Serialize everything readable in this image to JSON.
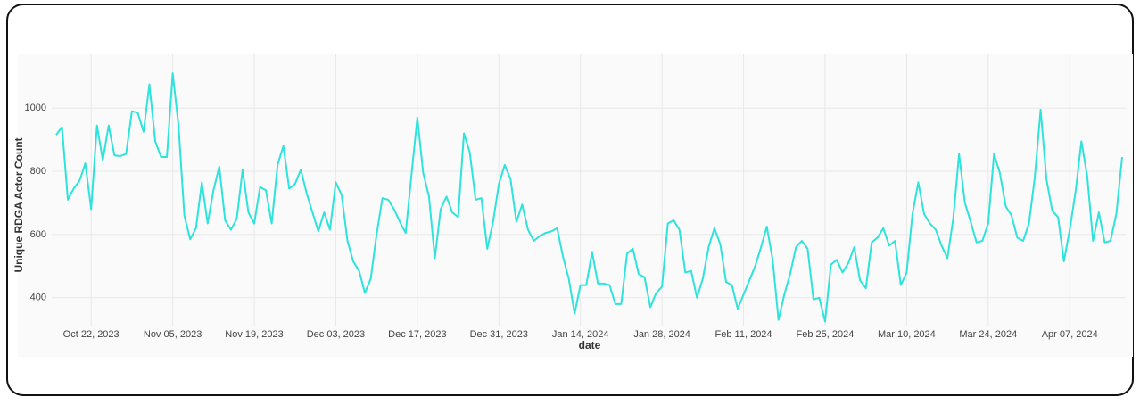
{
  "chart_data": {
    "type": "line",
    "x_label": "date",
    "y_label": "Unique RDGA Actor Count",
    "x": [
      "2023-10-16",
      "2023-10-17",
      "2023-10-18",
      "2023-10-19",
      "2023-10-20",
      "2023-10-21",
      "2023-10-22",
      "2023-10-23",
      "2023-10-24",
      "2023-10-25",
      "2023-10-26",
      "2023-10-27",
      "2023-10-28",
      "2023-10-29",
      "2023-10-30",
      "2023-10-31",
      "2023-11-01",
      "2023-11-02",
      "2023-11-03",
      "2023-11-04",
      "2023-11-05",
      "2023-11-06",
      "2023-11-07",
      "2023-11-08",
      "2023-11-09",
      "2023-11-10",
      "2023-11-11",
      "2023-11-12",
      "2023-11-13",
      "2023-11-14",
      "2023-11-15",
      "2023-11-16",
      "2023-11-17",
      "2023-11-18",
      "2023-11-19",
      "2023-11-20",
      "2023-11-21",
      "2023-11-22",
      "2023-11-23",
      "2023-11-24",
      "2023-11-25",
      "2023-11-26",
      "2023-11-27",
      "2023-11-28",
      "2023-11-29",
      "2023-11-30",
      "2023-12-01",
      "2023-12-02",
      "2023-12-03",
      "2023-12-04",
      "2023-12-05",
      "2023-12-06",
      "2023-12-07",
      "2023-12-08",
      "2023-12-09",
      "2023-12-10",
      "2023-12-11",
      "2023-12-12",
      "2023-12-13",
      "2023-12-14",
      "2023-12-15",
      "2023-12-16",
      "2023-12-17",
      "2023-12-18",
      "2023-12-19",
      "2023-12-20",
      "2023-12-21",
      "2023-12-22",
      "2023-12-23",
      "2023-12-24",
      "2023-12-25",
      "2023-12-26",
      "2023-12-27",
      "2023-12-28",
      "2023-12-29",
      "2023-12-30",
      "2023-12-31",
      "2024-01-01",
      "2024-01-02",
      "2024-01-03",
      "2024-01-04",
      "2024-01-05",
      "2024-01-06",
      "2024-01-07",
      "2024-01-08",
      "2024-01-09",
      "2024-01-10",
      "2024-01-11",
      "2024-01-12",
      "2024-01-13",
      "2024-01-14",
      "2024-01-15",
      "2024-01-16",
      "2024-01-17",
      "2024-01-18",
      "2024-01-19",
      "2024-01-20",
      "2024-01-21",
      "2024-01-22",
      "2024-01-23",
      "2024-01-24",
      "2024-01-25",
      "2024-01-26",
      "2024-01-27",
      "2024-01-28",
      "2024-01-29",
      "2024-01-30",
      "2024-01-31",
      "2024-02-01",
      "2024-02-02",
      "2024-02-03",
      "2024-02-04",
      "2024-02-05",
      "2024-02-06",
      "2024-02-07",
      "2024-02-08",
      "2024-02-09",
      "2024-02-10",
      "2024-02-11",
      "2024-02-12",
      "2024-02-13",
      "2024-02-14",
      "2024-02-15",
      "2024-02-16",
      "2024-02-17",
      "2024-02-18",
      "2024-02-19",
      "2024-02-20",
      "2024-02-21",
      "2024-02-22",
      "2024-02-23",
      "2024-02-24",
      "2024-02-25",
      "2024-02-26",
      "2024-02-27",
      "2024-02-28",
      "2024-02-29",
      "2024-03-01",
      "2024-03-02",
      "2024-03-03",
      "2024-03-04",
      "2024-03-05",
      "2024-03-06",
      "2024-03-07",
      "2024-03-08",
      "2024-03-09",
      "2024-03-10",
      "2024-03-11",
      "2024-03-12",
      "2024-03-13",
      "2024-03-14",
      "2024-03-15",
      "2024-03-16",
      "2024-03-17",
      "2024-03-18",
      "2024-03-19",
      "2024-03-20",
      "2024-03-21",
      "2024-03-22",
      "2024-03-23",
      "2024-03-24",
      "2024-03-25",
      "2024-03-26",
      "2024-03-27",
      "2024-03-28",
      "2024-03-29",
      "2024-03-30",
      "2024-03-31",
      "2024-04-01",
      "2024-04-02",
      "2024-04-03",
      "2024-04-04",
      "2024-04-05",
      "2024-04-06",
      "2024-04-07",
      "2024-04-08",
      "2024-04-09",
      "2024-04-10",
      "2024-04-11",
      "2024-04-12",
      "2024-04-13",
      "2024-04-14",
      "2024-04-15",
      "2024-04-16"
    ],
    "series": [
      {
        "color": "#2ee3dc",
        "values": [
          915,
          940,
          710,
          745,
          770,
          825,
          680,
          945,
          835,
          945,
          850,
          848,
          855,
          990,
          985,
          925,
          1075,
          895,
          845,
          845,
          1110,
          945,
          660,
          585,
          620,
          765,
          635,
          740,
          815,
          645,
          615,
          650,
          805,
          670,
          635,
          750,
          740,
          635,
          820,
          880,
          745,
          760,
          805,
          730,
          670,
          610,
          670,
          615,
          765,
          725,
          580,
          515,
          485,
          415,
          460,
          600,
          715,
          710,
          680,
          640,
          605,
          790,
          970,
          795,
          720,
          525,
          680,
          720,
          670,
          655,
          920,
          860,
          710,
          715,
          555,
          640,
          760,
          820,
          775,
          640,
          695,
          615,
          580,
          595,
          605,
          610,
          620,
          530,
          460,
          350,
          440,
          440,
          545,
          445,
          445,
          440,
          380,
          380,
          540,
          555,
          475,
          465,
          370,
          415,
          435,
          635,
          645,
          615,
          480,
          485,
          400,
          460,
          560,
          620,
          570,
          450,
          440,
          365,
          410,
          455,
          500,
          560,
          625,
          520,
          330,
          410,
          475,
          560,
          580,
          555,
          395,
          400,
          325,
          505,
          520,
          480,
          510,
          560,
          455,
          430,
          575,
          590,
          620,
          565,
          580,
          440,
          480,
          665,
          765,
          665,
          635,
          615,
          565,
          525,
          650,
          855,
          700,
          640,
          575,
          580,
          635,
          855,
          795,
          690,
          660,
          590,
          580,
          635,
          780,
          995,
          775,
          675,
          655,
          515,
          615,
          735,
          895,
          785,
          580,
          670,
          575,
          580,
          665,
          845
        ]
      }
    ],
    "xlim": [
      "2023-10-16",
      "2024-04-16"
    ],
    "xticks": [
      {
        "value": "2023-10-22",
        "label": "Oct 22, 2023"
      },
      {
        "value": "2023-11-05",
        "label": "Nov 05, 2023"
      },
      {
        "value": "2023-11-19",
        "label": "Nov 19, 2023"
      },
      {
        "value": "2023-12-03",
        "label": "Dec 03, 2023"
      },
      {
        "value": "2023-12-17",
        "label": "Dec 17, 2023"
      },
      {
        "value": "2023-12-31",
        "label": "Dec 31, 2023"
      },
      {
        "value": "2024-01-14",
        "label": "Jan 14, 2024"
      },
      {
        "value": "2024-01-28",
        "label": "Jan 28, 2024"
      },
      {
        "value": "2024-02-11",
        "label": "Feb 11, 2024"
      },
      {
        "value": "2024-02-25",
        "label": "Feb 25, 2024"
      },
      {
        "value": "2024-03-10",
        "label": "Mar 10, 2024"
      },
      {
        "value": "2024-03-24",
        "label": "Mar 24, 2024"
      },
      {
        "value": "2024-04-07",
        "label": "Apr 07, 2024"
      }
    ],
    "ylim": [
      312,
      1116
    ],
    "yticks": [
      400,
      600,
      800,
      1000
    ],
    "grid": true
  }
}
